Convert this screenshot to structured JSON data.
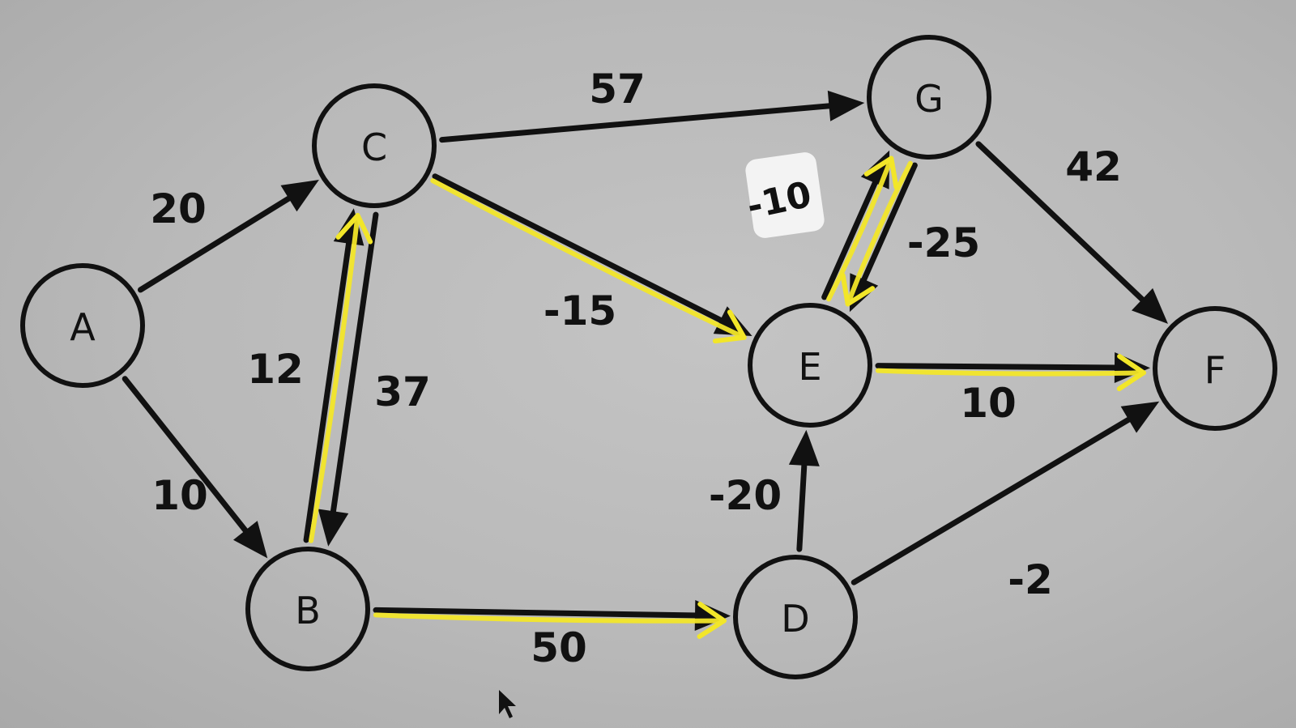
{
  "diagram": {
    "type": "directed-weighted-graph",
    "highlight_color": "#f2e629",
    "edge_color": "#111111",
    "nodes": [
      {
        "id": "A",
        "label": "A"
      },
      {
        "id": "B",
        "label": "B"
      },
      {
        "id": "C",
        "label": "C"
      },
      {
        "id": "D",
        "label": "D"
      },
      {
        "id": "E",
        "label": "E"
      },
      {
        "id": "F",
        "label": "F"
      },
      {
        "id": "G",
        "label": "G"
      }
    ],
    "edges": [
      {
        "from": "A",
        "to": "C",
        "weight": "20",
        "highlighted": false
      },
      {
        "from": "A",
        "to": "B",
        "weight": "10",
        "highlighted": false
      },
      {
        "from": "B",
        "to": "C",
        "weight": "12",
        "highlighted": true
      },
      {
        "from": "C",
        "to": "B",
        "weight": "37",
        "highlighted": false
      },
      {
        "from": "C",
        "to": "G",
        "weight": "57",
        "highlighted": false
      },
      {
        "from": "C",
        "to": "E",
        "weight": "-15",
        "highlighted": true
      },
      {
        "from": "B",
        "to": "D",
        "weight": "50",
        "highlighted": true
      },
      {
        "from": "D",
        "to": "E",
        "weight": "-20",
        "highlighted": false
      },
      {
        "from": "D",
        "to": "F",
        "weight": "-2",
        "highlighted": false
      },
      {
        "from": "E",
        "to": "F",
        "weight": "10",
        "highlighted": true
      },
      {
        "from": "G",
        "to": "E",
        "weight": "-25",
        "highlighted": true
      },
      {
        "from": "E",
        "to": "G",
        "weight": "",
        "highlighted": true
      },
      {
        "from": "G",
        "to": "F",
        "weight": "42",
        "highlighted": false
      }
    ],
    "annotation": {
      "text": "-10",
      "note": "handwritten over erased label"
    },
    "pointer": {
      "icon": "mouse-cursor-icon"
    }
  }
}
